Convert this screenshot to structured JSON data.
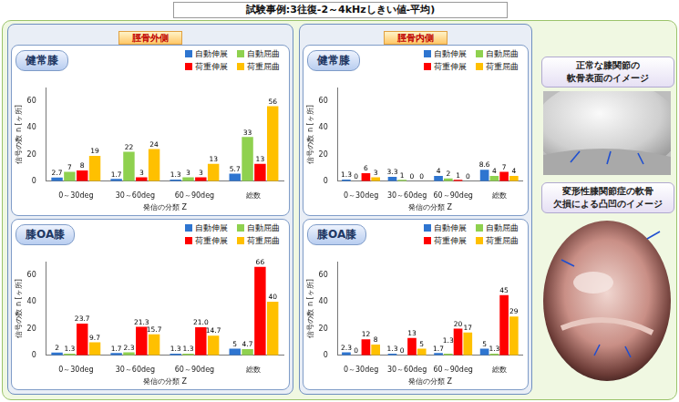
{
  "title": "試験事例:3往復-2～4kHzしきい値-平均)",
  "chart_data": [
    {
      "type": "bar",
      "panel": "脛骨外側",
      "title": "健常膝",
      "categories": [
        "0～30deg",
        "30～60deg",
        "60～90deg",
        "総数"
      ],
      "series": [
        {
          "name": "自動伸展",
          "color": "#2e75d0",
          "values": [
            2.7,
            1.7,
            1.3,
            5.7
          ]
        },
        {
          "name": "自動屈曲",
          "color": "#8fd14f",
          "values": [
            7,
            22,
            3,
            33
          ]
        },
        {
          "name": "荷重伸展",
          "color": "#ff0000",
          "values": [
            8,
            3,
            3,
            13
          ]
        },
        {
          "name": "荷重屈曲",
          "color": "#ffc000",
          "values": [
            19,
            24,
            13,
            56
          ]
        }
      ],
      "x_label": "発信の分類 Z",
      "y_label": "信号の数 n [ヶ所]",
      "ylim": [
        0,
        70
      ],
      "yticks": [
        0,
        20,
        40,
        60
      ],
      "grid": false,
      "legend": "top",
      "data_labels": true
    },
    {
      "type": "bar",
      "panel": "脛骨外側",
      "title": "膝OA膝",
      "categories": [
        "0～30deg",
        "30～60deg",
        "60～90deg",
        "総数"
      ],
      "series": [
        {
          "name": "自動伸展",
          "color": "#2e75d0",
          "values": [
            2,
            1.7,
            1.3,
            5
          ]
        },
        {
          "name": "自動屈曲",
          "color": "#8fd14f",
          "values": [
            1.3,
            2.3,
            1.3,
            4.7
          ]
        },
        {
          "name": "荷重伸展",
          "color": "#ff0000",
          "values": [
            23.7,
            21.3,
            21.0,
            66
          ],
          "value_labels": [
            "23.7",
            "21.3",
            "21.0",
            "66"
          ]
        },
        {
          "name": "荷重屈曲",
          "color": "#ffc000",
          "values": [
            9.7,
            15.7,
            14.7,
            40
          ]
        }
      ],
      "x_label": "発信の分類 Z",
      "y_label": "信号の数 n [ヶ所]",
      "ylim": [
        0,
        70
      ],
      "yticks": [
        0,
        20,
        40,
        60
      ],
      "grid": false,
      "legend": "top",
      "data_labels": true
    },
    {
      "type": "bar",
      "panel": "脛骨内側",
      "title": "健常膝",
      "categories": [
        "0～30deg",
        "30～60deg",
        "60～90deg",
        "総数"
      ],
      "series": [
        {
          "name": "自動伸展",
          "color": "#2e75d0",
          "values": [
            1.3,
            3.3,
            4,
            8.6
          ]
        },
        {
          "name": "自動屈曲",
          "color": "#8fd14f",
          "values": [
            0,
            1,
            2,
            4
          ]
        },
        {
          "name": "荷重伸展",
          "color": "#ff0000",
          "values": [
            6,
            0,
            1,
            7
          ]
        },
        {
          "name": "荷重屈曲",
          "color": "#ffc000",
          "values": [
            3,
            0,
            0,
            4
          ]
        }
      ],
      "x_label": "発信の分類 Z",
      "y_label": "信号の数 n [ヶ所]",
      "ylim": [
        0,
        70
      ],
      "yticks": [
        0,
        20,
        40,
        60
      ],
      "grid": false,
      "legend": "top",
      "data_labels": true
    },
    {
      "type": "bar",
      "panel": "脛骨内側",
      "title": "膝OA膝",
      "categories": [
        "0～30deg",
        "30～60deg",
        "60～90deg",
        "総数"
      ],
      "series": [
        {
          "name": "自動伸展",
          "color": "#2e75d0",
          "values": [
            2.3,
            1.3,
            1.7,
            5
          ]
        },
        {
          "name": "自動屈曲",
          "color": "#8fd14f",
          "values": [
            0,
            0,
            1.3,
            1.3
          ]
        },
        {
          "name": "荷重伸展",
          "color": "#ff0000",
          "values": [
            12,
            13,
            20,
            45
          ]
        },
        {
          "name": "荷重屈曲",
          "color": "#ffc000",
          "values": [
            8,
            5,
            17,
            29
          ]
        }
      ],
      "x_label": "発信の分類 Z",
      "y_label": "信号の数 n [ヶ所]",
      "ylim": [
        0,
        70
      ],
      "yticks": [
        0,
        20,
        40,
        60
      ],
      "grid": false,
      "legend": "top",
      "data_labels": true
    }
  ],
  "images": [
    {
      "caption": [
        "正常な膝関節の",
        "軟骨表面のイメージ"
      ]
    },
    {
      "caption": [
        "変形性膝関節症の軟骨",
        "欠損による凸凹のイメージ"
      ]
    }
  ]
}
